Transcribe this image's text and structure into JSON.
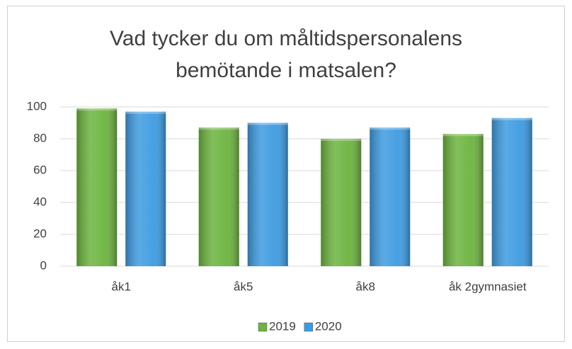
{
  "chart_data": {
    "type": "bar",
    "title": "Vad tycker du om måltidspersonalens bemötande i matsalen?",
    "categories": [
      "åk1",
      "åk5",
      "åk8",
      "åk 2gymnasiet"
    ],
    "series": [
      {
        "name": "2019",
        "color": "#6cb33f",
        "values": [
          99,
          87,
          80,
          83
        ]
      },
      {
        "name": "2020",
        "color": "#3d9be0",
        "values": [
          97,
          90,
          87,
          93
        ]
      }
    ],
    "ylim": [
      0,
      100
    ],
    "yticks": [
      0,
      20,
      40,
      60,
      80,
      100
    ],
    "grid": true,
    "legend": "bottom"
  }
}
